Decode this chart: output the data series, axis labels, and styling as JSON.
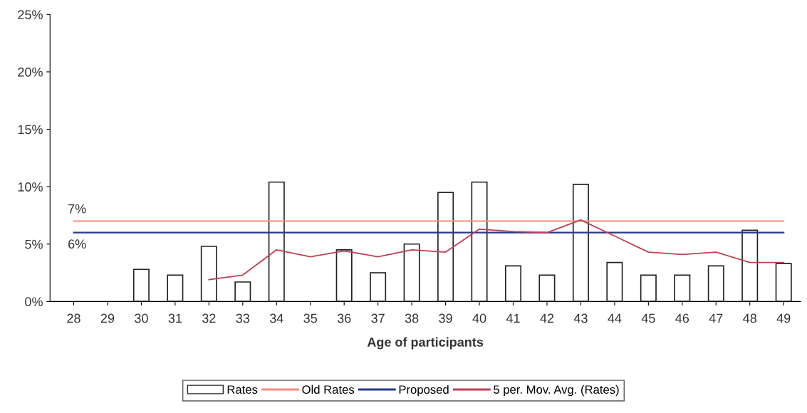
{
  "chart_data": {
    "type": "bar",
    "xlabel": "Age of participants",
    "categories": [
      "28",
      "29",
      "30",
      "31",
      "32",
      "33",
      "34",
      "35",
      "36",
      "37",
      "38",
      "39",
      "40",
      "41",
      "42",
      "43",
      "44",
      "45",
      "46",
      "47",
      "48",
      "49"
    ],
    "series": [
      {
        "name": "Rates",
        "color": "#ffffff",
        "values": [
          null,
          null,
          2.8,
          2.3,
          4.8,
          1.7,
          10.4,
          null,
          4.5,
          2.5,
          5.0,
          9.5,
          10.4,
          3.1,
          2.3,
          10.2,
          3.4,
          2.3,
          2.3,
          3.1,
          6.2,
          3.3
        ]
      },
      {
        "name": "Old Rates",
        "type": "line",
        "color": "#f4907a",
        "values": [
          7,
          7,
          7,
          7,
          7,
          7,
          7,
          7,
          7,
          7,
          7,
          7,
          7,
          7,
          7,
          7,
          7,
          7,
          7,
          7,
          7,
          7
        ]
      },
      {
        "name": "Proposed",
        "type": "line",
        "color": "#283a8c",
        "values": [
          6,
          6,
          6,
          6,
          6,
          6,
          6,
          6,
          6,
          6,
          6,
          6,
          6,
          6,
          6,
          6,
          6,
          6,
          6,
          6,
          6,
          6
        ]
      },
      {
        "name": "5 per. Mov. Avg. (Rates)",
        "type": "line",
        "color": "#c04050",
        "values": [
          null,
          null,
          null,
          null,
          1.9,
          2.3,
          4.5,
          3.9,
          4.4,
          3.9,
          4.5,
          4.3,
          6.3,
          6.1,
          6.0,
          7.1,
          5.7,
          4.3,
          4.1,
          4.3,
          3.4,
          3.4
        ]
      }
    ],
    "annotations": [
      {
        "text": "7%",
        "x": "28",
        "y": 7
      },
      {
        "text": "6%",
        "x": "28",
        "y": 6
      }
    ],
    "ylim": [
      0,
      25
    ],
    "yticks": [
      {
        "value": 0,
        "label": "0%"
      },
      {
        "value": 5,
        "label": "5%"
      },
      {
        "value": 10,
        "label": "10%"
      },
      {
        "value": 15,
        "label": "15%"
      },
      {
        "value": 20,
        "label": "20%"
      },
      {
        "value": 25,
        "label": "25%"
      }
    ],
    "grid": false,
    "legend": "bottom"
  }
}
